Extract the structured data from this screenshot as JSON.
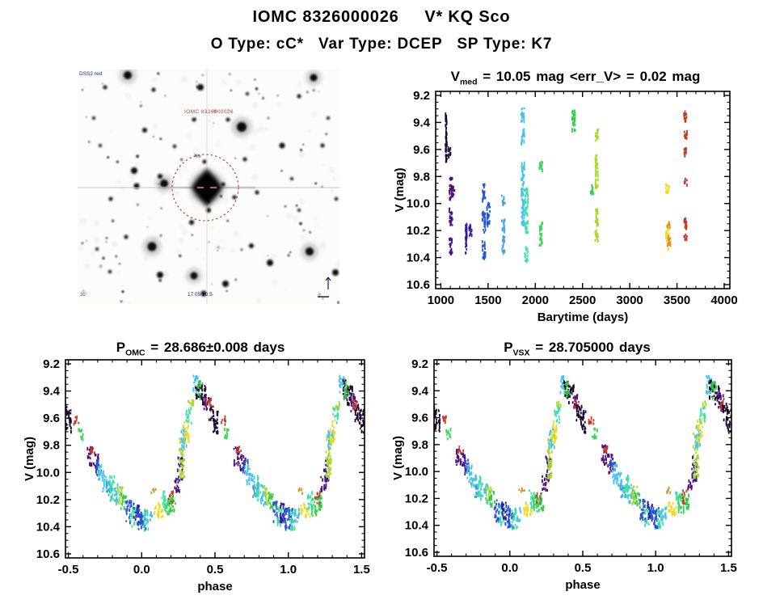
{
  "header": {
    "title": "IOMC 8326000026     V* KQ Sco",
    "subtitle": "O Type: cC*   Var Type: DCEP   SP Type: K7"
  },
  "finder": {
    "survey_label": "DSS2 red",
    "target_label": "IOMC 8326000026",
    "coord_label": "17 05 20.5",
    "scale_label": "35'",
    "circle_color": "#c03028",
    "annotation_color": "#1c1c5e"
  },
  "chart_data": [
    {
      "id": "timeplot",
      "type": "scatter",
      "phase": false,
      "title_parts": {
        "pre": "V",
        "sub": "med",
        "post": " = 10.05 mag <err_V> = 0.02 mag"
      },
      "xlabel": "Barytime (days)",
      "ylabel": "V (mag)",
      "xlim": [
        945,
        4060
      ],
      "ylim": [
        9.17,
        10.63
      ],
      "y_inverted_mag_axis": true,
      "xticks": [
        1000,
        1500,
        2000,
        2500,
        3000,
        3500,
        4000
      ],
      "yticks": [
        9.2,
        9.4,
        9.6,
        9.8,
        10.0,
        10.2,
        10.4,
        10.6
      ],
      "x_minor": 100,
      "y_minor": 0.05,
      "x_dec": 0,
      "y_dec": 1,
      "density": 150,
      "jitter": 2,
      "clusters": [
        {
          "x": 1057,
          "c": "#1c0433",
          "jx": 0.9,
          "v": [
            [
              9.33,
              9.7
            ]
          ]
        },
        {
          "x": 1091,
          "c": "#1c0433",
          "v": [
            [
              9.58,
              9.66
            ]
          ]
        },
        {
          "x": 1106,
          "c": "#4d0e7e",
          "v": [
            [
              9.8,
              9.97
            ],
            [
              10.03,
              10.17
            ],
            [
              10.26,
              10.38
            ]
          ]
        },
        {
          "x": 1129,
          "c": "#4d0e7e",
          "v": [
            [
              9.87,
              9.95
            ]
          ]
        },
        {
          "x": 1269,
          "c": "#3318a0",
          "jx": 0.9,
          "v": [
            [
              10.14,
              10.38
            ]
          ]
        },
        {
          "x": 1314,
          "c": "#3318a0",
          "v": [
            [
              10.16,
              10.24
            ]
          ]
        },
        {
          "x": 1455,
          "c": "#2456d4",
          "v": [
            [
              9.86,
              9.99
            ],
            [
              10.05,
              10.22
            ],
            [
              10.27,
              10.41
            ]
          ]
        },
        {
          "x": 1506,
          "c": "#2456d4",
          "v": [
            [
              10.0,
              10.17
            ]
          ]
        },
        {
          "x": 1660,
          "c": "#3fa0e8",
          "v": [
            [
              9.94,
              10.01
            ],
            [
              10.12,
              10.21
            ],
            [
              10.23,
              10.37
            ]
          ]
        },
        {
          "x": 1868,
          "c": "#45c2ee",
          "v": [
            [
              9.29,
              9.4
            ],
            [
              9.45,
              9.57
            ],
            [
              9.7,
              9.87
            ],
            [
              9.89,
              10.17
            ]
          ]
        },
        {
          "x": 1905,
          "c": "#38e2a6",
          "v": [
            [
              9.89,
              10.09
            ],
            [
              10.13,
              10.22
            ],
            [
              10.32,
              10.43
            ]
          ]
        },
        {
          "x": 2060,
          "c": "#3cd65c",
          "v": [
            [
              9.67,
              9.77
            ],
            [
              10.14,
              10.31
            ]
          ]
        },
        {
          "x": 2405,
          "c": "#2ecb44",
          "v": [
            [
              9.31,
              9.47
            ]
          ]
        },
        {
          "x": 2600,
          "c": "#2ecb44",
          "v": [
            [
              9.87,
              9.93
            ]
          ]
        },
        {
          "x": 2650,
          "c": "#a8d828",
          "v": [
            [
              9.45,
              9.54
            ],
            [
              9.64,
              9.8
            ],
            [
              9.82,
              9.89
            ],
            [
              10.04,
              10.17
            ],
            [
              10.19,
              10.28
            ]
          ]
        },
        {
          "x": 3400,
          "c": "#f0da1a",
          "v": [
            [
              9.86,
              9.93
            ],
            [
              10.14,
              10.35
            ]
          ]
        },
        {
          "x": 3415,
          "c": "#d8922c",
          "v": [
            [
              10.14,
              10.18
            ],
            [
              10.23,
              10.31
            ]
          ]
        },
        {
          "x": 3590,
          "c": "#c43a24",
          "v": [
            [
              9.31,
              9.42
            ],
            [
              9.46,
              9.53
            ],
            [
              9.58,
              9.65
            ],
            [
              9.81,
              9.87
            ],
            [
              10.11,
              10.21
            ],
            [
              10.23,
              10.28
            ]
          ]
        }
      ]
    },
    {
      "id": "phase_omc",
      "type": "scatter",
      "phase": true,
      "title_parts": {
        "pre": "P",
        "sub": "OMC",
        "post": " = 28.686±0.008 days"
      },
      "xlabel": "phase",
      "ylabel": "V (mag)",
      "xlim": [
        -0.52,
        1.52
      ],
      "ylim": [
        9.17,
        10.63
      ],
      "xticks": [
        -0.5,
        0.0,
        0.5,
        1.0,
        1.5
      ],
      "yticks": [
        9.2,
        9.4,
        9.6,
        9.8,
        10.0,
        10.2,
        10.4,
        10.6
      ],
      "x_minor": 0.1,
      "y_minor": 0.05,
      "x_dec": 1,
      "y_dec": 1,
      "density": 135,
      "jitter": 3.4,
      "clusters_key": "phase_clusters"
    },
    {
      "id": "phase_vsx",
      "type": "scatter",
      "phase": true,
      "title_parts": {
        "pre": "P",
        "sub": "VSX",
        "post": " = 28.705000 days"
      },
      "xlabel": "phase",
      "ylabel": "V (mag)",
      "xlim": [
        -0.52,
        1.52
      ],
      "ylim": [
        9.17,
        10.63
      ],
      "xticks": [
        -0.5,
        0.0,
        0.5,
        1.0,
        1.5
      ],
      "yticks": [
        9.2,
        9.4,
        9.6,
        9.8,
        10.0,
        10.2,
        10.4,
        10.6
      ],
      "x_minor": 0.1,
      "y_minor": 0.05,
      "x_dec": 1,
      "y_dec": 1,
      "density": 135,
      "jitter": 3.4,
      "clusters_key": "phase_clusters"
    }
  ],
  "phase_clusters": [
    {
      "p": 0.335,
      "c": "#a8d828",
      "v": [
        [
          9.47,
          9.53
        ]
      ]
    },
    {
      "p": 0.365,
      "c": "#45c2ee",
      "v": [
        [
          9.29,
          9.42
        ]
      ]
    },
    {
      "p": 0.385,
      "c": "#1c0433",
      "v": [
        [
          9.32,
          9.46
        ]
      ]
    },
    {
      "p": 0.397,
      "c": "#2ecb44",
      "v": [
        [
          9.33,
          9.46
        ]
      ]
    },
    {
      "p": 0.42,
      "c": "#1c0433",
      "v": [
        [
          9.36,
          9.5
        ]
      ]
    },
    {
      "p": 0.445,
      "c": "#4d0e7e",
      "v": [
        [
          9.42,
          9.55
        ]
      ]
    },
    {
      "p": 0.457,
      "c": "#c43a24",
      "v": [
        [
          9.46,
          9.54
        ]
      ]
    },
    {
      "p": 0.475,
      "c": "#1c0433",
      "v": [
        [
          9.5,
          9.62
        ]
      ]
    },
    {
      "p": 0.503,
      "c": "#1c0433",
      "v": [
        [
          9.54,
          9.71
        ]
      ]
    },
    {
      "p": 0.556,
      "c": "#c43a24",
      "v": [
        [
          9.59,
          9.65
        ]
      ]
    },
    {
      "p": 0.582,
      "c": "#3cd65c",
      "v": [
        [
          9.68,
          9.76
        ]
      ]
    },
    {
      "p": 0.648,
      "c": "#4d0e7e",
      "v": [
        [
          9.81,
          9.95
        ]
      ]
    },
    {
      "p": 0.664,
      "c": "#c43a24",
      "v": [
        [
          9.81,
          9.87
        ]
      ]
    },
    {
      "p": 0.69,
      "c": "#4d0e7e",
      "v": [
        [
          9.87,
          10.01
        ]
      ]
    },
    {
      "p": 0.707,
      "c": "#2456d4",
      "v": [
        [
          9.91,
          10.02
        ]
      ]
    },
    {
      "p": 0.722,
      "c": "#45c2ee",
      "v": [
        [
          9.95,
          10.09
        ]
      ]
    },
    {
      "p": 0.753,
      "c": "#45c2ee",
      "v": [
        [
          10.01,
          10.14
        ]
      ]
    },
    {
      "p": 0.778,
      "c": "#3fa0e8",
      "v": [
        [
          10.07,
          10.19
        ]
      ]
    },
    {
      "p": 0.8,
      "c": "#38e2a6",
      "v": [
        [
          10.03,
          10.21
        ]
      ]
    },
    {
      "p": 0.833,
      "c": "#45c2ee",
      "v": [
        [
          10.09,
          10.24
        ]
      ]
    },
    {
      "p": 0.855,
      "c": "#a8d828",
      "v": [
        [
          10.11,
          10.24
        ]
      ]
    },
    {
      "p": 0.877,
      "c": "#2ecb44",
      "v": [
        [
          10.15,
          10.27
        ]
      ]
    },
    {
      "p": 0.913,
      "c": "#2456d4",
      "v": [
        [
          10.21,
          10.37
        ]
      ]
    },
    {
      "p": 0.943,
      "c": "#38e2a6",
      "v": [
        [
          10.25,
          10.4
        ]
      ]
    },
    {
      "p": 0.963,
      "c": "#3318a0",
      "v": [
        [
          10.23,
          10.37
        ]
      ]
    },
    {
      "p": 0.985,
      "c": "#2456d4",
      "v": [
        [
          10.26,
          10.42
        ]
      ]
    },
    {
      "p": 0.012,
      "c": "#2456d4",
      "v": [
        [
          10.26,
          10.42
        ]
      ]
    },
    {
      "p": 0.032,
      "c": "#38e2a6",
      "v": [
        [
          10.28,
          10.43
        ]
      ]
    },
    {
      "p": 0.056,
      "c": "#45c2ee",
      "v": [
        [
          10.27,
          10.37
        ]
      ]
    },
    {
      "p": 0.082,
      "c": "#d8922c",
      "v": [
        [
          10.12,
          10.16
        ]
      ]
    },
    {
      "p": 0.105,
      "c": "#f0da1a",
      "v": [
        [
          10.23,
          10.32
        ]
      ]
    },
    {
      "p": 0.13,
      "c": "#f0da1a",
      "v": [
        [
          10.26,
          10.33
        ]
      ]
    },
    {
      "p": 0.152,
      "c": "#38e2a6",
      "v": [
        [
          10.14,
          10.27
        ]
      ]
    },
    {
      "p": 0.175,
      "c": "#3cd65c",
      "v": [
        [
          10.18,
          10.32
        ]
      ]
    },
    {
      "p": 0.198,
      "c": "#c43a24",
      "v": [
        [
          10.14,
          10.24
        ]
      ]
    },
    {
      "p": 0.213,
      "c": "#2ecb44",
      "v": [
        [
          10.17,
          10.29
        ]
      ]
    },
    {
      "p": 0.24,
      "c": "#4d0e7e",
      "v": [
        [
          10.03,
          10.14
        ]
      ]
    },
    {
      "p": 0.262,
      "c": "#3318a0",
      "v": [
        [
          9.89,
          10.07
        ]
      ]
    },
    {
      "p": 0.276,
      "c": "#a8d828",
      "v": [
        [
          9.72,
          10.05
        ]
      ]
    },
    {
      "p": 0.288,
      "c": "#45c2ee",
      "v": [
        [
          9.67,
          9.83
        ]
      ]
    },
    {
      "p": 0.303,
      "c": "#f0da1a",
      "v": [
        [
          9.61,
          9.79
        ]
      ]
    },
    {
      "p": 0.322,
      "c": "#38e2a6",
      "v": [
        [
          9.52,
          9.64
        ]
      ]
    }
  ]
}
